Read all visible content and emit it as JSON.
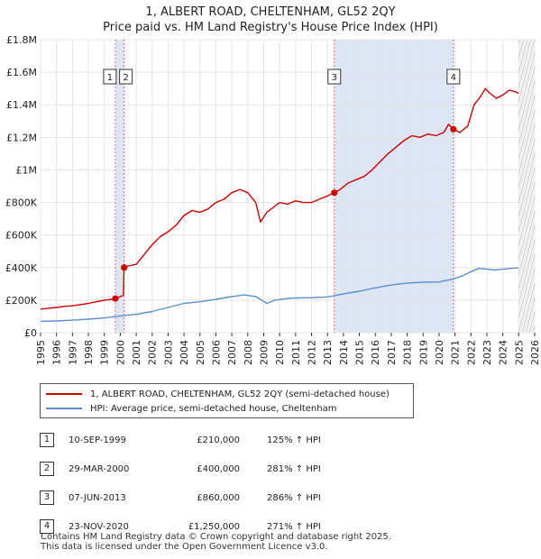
{
  "title_line1": "1, ALBERT ROAD, CHELTENHAM, GL52 2QY",
  "title_line2": "Price paid vs. HM Land Registry's House Price Index (HPI)",
  "colors": {
    "property": "#cc0000",
    "hpi": "#5b8fce",
    "marker_line": "#e06080",
    "shade": "#dde6f5"
  },
  "legend": {
    "property_label": "1, ALBERT ROAD, CHELTENHAM, GL52 2QY (semi-detached house)",
    "hpi_label": "HPI: Average price, semi-detached house, Cheltenham"
  },
  "transactions": [
    {
      "num": "1",
      "date": "10-SEP-1999",
      "price": "£210,000",
      "hpi_delta": "125% ↑ HPI"
    },
    {
      "num": "2",
      "date": "29-MAR-2000",
      "price": "£400,000",
      "hpi_delta": "281% ↑ HPI"
    },
    {
      "num": "3",
      "date": "07-JUN-2013",
      "price": "£860,000",
      "hpi_delta": "286% ↑ HPI"
    },
    {
      "num": "4",
      "date": "23-NOV-2020",
      "price": "£1,250,000",
      "hpi_delta": "271% ↑ HPI"
    }
  ],
  "footer": {
    "line1": "Contains HM Land Registry data © Crown copyright and database right 2025.",
    "line2": "This data is licensed under the Open Government Licence v3.0."
  },
  "chart_data": {
    "type": "line",
    "title": "Price paid vs. HM Land Registry's House Price Index (HPI)",
    "xlim": [
      1995,
      2026
    ],
    "ylim": [
      0,
      1800000
    ],
    "x_ticks": [
      1995,
      1996,
      1997,
      1998,
      1999,
      2000,
      2001,
      2002,
      2003,
      2004,
      2005,
      2006,
      2007,
      2008,
      2009,
      2010,
      2011,
      2012,
      2013,
      2014,
      2015,
      2016,
      2017,
      2018,
      2019,
      2020,
      2021,
      2022,
      2023,
      2024,
      2025,
      2026
    ],
    "y_ticks": [
      {
        "value": 0,
        "label": "£0"
      },
      {
        "value": 200000,
        "label": "£200K"
      },
      {
        "value": 400000,
        "label": "£400K"
      },
      {
        "value": 600000,
        "label": "£600K"
      },
      {
        "value": 800000,
        "label": "£800K"
      },
      {
        "value": 1000000,
        "label": "£1M"
      },
      {
        "value": 1200000,
        "label": "£1.2M"
      },
      {
        "value": 1400000,
        "label": "£1.4M"
      },
      {
        "value": 1600000,
        "label": "£1.6M"
      },
      {
        "value": 1800000,
        "label": "£1.8M"
      }
    ],
    "shaded_ranges": [
      [
        1999.69,
        2000.24
      ],
      [
        2013.43,
        2020.9
      ]
    ],
    "future_hatch_from": 2025.0,
    "sale_markers": [
      {
        "label": "1",
        "x": 1999.69,
        "y": 210000
      },
      {
        "label": "2",
        "x": 2000.24,
        "y": 400000
      },
      {
        "label": "3",
        "x": 2013.43,
        "y": 860000
      },
      {
        "label": "4",
        "x": 2020.9,
        "y": 1250000
      }
    ],
    "series": [
      {
        "name": "1, ALBERT ROAD, CHELTENHAM, GL52 2QY (semi-detached house)",
        "x": [
          1995.0,
          1995.5,
          1996.0,
          1996.5,
          1997.0,
          1997.5,
          1998.0,
          1998.5,
          1999.0,
          1999.5,
          1999.69,
          2000.2,
          2000.24,
          2000.5,
          2001.0,
          2001.5,
          2002.0,
          2002.5,
          2003.0,
          2003.5,
          2004.0,
          2004.5,
          2005.0,
          2005.5,
          2006.0,
          2006.5,
          2007.0,
          2007.5,
          2008.0,
          2008.5,
          2008.8,
          2009.2,
          2009.6,
          2010.0,
          2010.5,
          2011.0,
          2011.5,
          2012.0,
          2012.5,
          2013.0,
          2013.43,
          2013.8,
          2014.3,
          2014.8,
          2015.3,
          2015.8,
          2016.3,
          2016.8,
          2017.3,
          2017.8,
          2018.3,
          2018.8,
          2019.3,
          2019.8,
          2020.3,
          2020.6,
          2020.9,
          2021.3,
          2021.8,
          2022.2,
          2022.6,
          2022.9,
          2023.2,
          2023.6,
          2024.0,
          2024.4,
          2024.8,
          2025.0
        ],
        "y": [
          145000,
          150000,
          155000,
          162000,
          165000,
          172000,
          180000,
          190000,
          200000,
          205000,
          210000,
          230000,
          400000,
          410000,
          420000,
          480000,
          540000,
          590000,
          620000,
          660000,
          720000,
          750000,
          740000,
          760000,
          800000,
          820000,
          860000,
          880000,
          860000,
          800000,
          680000,
          740000,
          770000,
          800000,
          790000,
          810000,
          800000,
          800000,
          820000,
          840000,
          860000,
          880000,
          920000,
          940000,
          960000,
          1000000,
          1050000,
          1100000,
          1140000,
          1180000,
          1210000,
          1200000,
          1220000,
          1210000,
          1230000,
          1280000,
          1250000,
          1230000,
          1270000,
          1400000,
          1450000,
          1500000,
          1470000,
          1440000,
          1460000,
          1490000,
          1480000,
          1470000
        ]
      },
      {
        "name": "HPI: Average price, semi-detached house, Cheltenham",
        "x": [
          1995.0,
          1996.0,
          1997.0,
          1998.0,
          1999.0,
          2000.0,
          2001.0,
          2002.0,
          2003.0,
          2004.0,
          2005.0,
          2006.0,
          2007.0,
          2007.8,
          2008.5,
          2009.2,
          2009.7,
          2010.5,
          2011.0,
          2012.0,
          2013.0,
          2014.0,
          2015.0,
          2016.0,
          2017.0,
          2018.0,
          2019.0,
          2020.0,
          2020.9,
          2021.5,
          2022.0,
          2022.5,
          2023.0,
          2023.5,
          2024.0,
          2024.5,
          2025.0
        ],
        "y": [
          70000,
          72000,
          77000,
          83000,
          91000,
          103000,
          113000,
          130000,
          155000,
          180000,
          190000,
          205000,
          222000,
          232000,
          222000,
          180000,
          200000,
          210000,
          213000,
          215000,
          220000,
          238000,
          255000,
          275000,
          293000,
          305000,
          310000,
          312000,
          330000,
          350000,
          375000,
          395000,
          390000,
          385000,
          390000,
          395000,
          398000
        ]
      }
    ]
  }
}
